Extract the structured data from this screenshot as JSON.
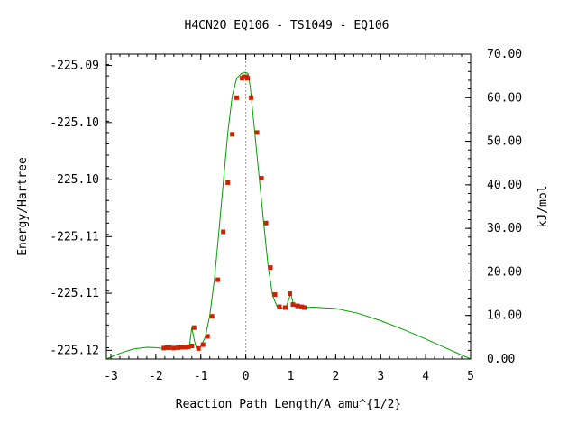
{
  "chart_data": {
    "type": "line",
    "title": "H4CN2O    EQ106 - TS1049 - EQ106",
    "xlabel": "Reaction Path Length/A amu^{1/2}",
    "ylabel_left": "Energy/Hartree",
    "ylabel_right": "kJ/mol",
    "xlim": [
      -3.1,
      5.0
    ],
    "ylim_kj": [
      0.0,
      70.0
    ],
    "x_ticks": [
      -3,
      -2,
      -1,
      0,
      1,
      2,
      3,
      4,
      5
    ],
    "x_tick_labels": [
      "-3",
      "-2",
      "-1",
      "0",
      "1",
      "2",
      "3",
      "4",
      "5"
    ],
    "left_tick_kj": [
      2.0,
      15.1,
      28.1,
      41.2,
      54.3,
      67.4
    ],
    "left_tick_labels": [
      "-225.12",
      "-225.11",
      "-225.11",
      "-225.10",
      "-225.10",
      "-225.09"
    ],
    "right_ticks": [
      0,
      10,
      20,
      30,
      40,
      50,
      60,
      70
    ],
    "right_tick_labels": [
      "0.00",
      "10.00",
      "20.00",
      "30.00",
      "40.00",
      "50.00",
      "60.00",
      "70.00"
    ],
    "ts_marker_x": 0.0,
    "colors": {
      "curve": "#00a000",
      "points": "#cc2200",
      "marker_line": "#999999",
      "axes": "#000000"
    },
    "curve": {
      "x": [
        -3.1,
        -2.8,
        -2.5,
        -2.2,
        -2.0,
        -1.8,
        -1.6,
        -1.4,
        -1.3,
        -1.25,
        -1.2,
        -1.15,
        -1.1,
        -1.05,
        -1.0,
        -0.9,
        -0.8,
        -0.7,
        -0.6,
        -0.5,
        -0.4,
        -0.3,
        -0.2,
        -0.1,
        -0.05,
        0.0,
        0.05,
        0.1,
        0.2,
        0.3,
        0.4,
        0.5,
        0.6,
        0.7,
        0.8,
        0.9,
        0.95,
        1.0,
        1.05,
        1.1,
        1.2,
        1.3,
        1.5,
        2.0,
        2.5,
        3.0,
        3.5,
        4.0,
        4.5,
        5.0
      ],
      "y": [
        0.0,
        1.3,
        2.3,
        2.7,
        2.6,
        2.4,
        2.5,
        2.8,
        2.9,
        3.3,
        7.3,
        4.5,
        2.5,
        2.6,
        2.9,
        5.0,
        10.0,
        18.0,
        29.0,
        40.5,
        52.0,
        60.5,
        64.5,
        65.5,
        65.8,
        65.8,
        65.5,
        62.5,
        52.0,
        41.5,
        31.0,
        21.0,
        14.5,
        12.0,
        11.7,
        12.0,
        13.5,
        15.0,
        13.0,
        12.3,
        12.0,
        11.8,
        11.9,
        11.6,
        10.5,
        8.8,
        6.8,
        4.6,
        2.3,
        0.0
      ]
    },
    "points": {
      "x": [
        -1.82,
        -1.75,
        -1.7,
        -1.6,
        -1.5,
        -1.42,
        -1.35,
        -1.28,
        -1.2,
        -1.15,
        -1.05,
        -0.95,
        -0.85,
        -0.75,
        -0.62,
        -0.5,
        -0.4,
        -0.3,
        -0.2,
        -0.08,
        -0.04,
        0.0,
        0.04,
        0.12,
        0.25,
        0.35,
        0.45,
        0.55,
        0.65,
        0.75,
        0.88,
        0.98,
        1.05,
        1.15,
        1.25,
        1.3
      ],
      "y": [
        2.5,
        2.6,
        2.6,
        2.5,
        2.6,
        2.7,
        2.7,
        2.8,
        3.0,
        7.2,
        2.4,
        3.3,
        5.2,
        9.8,
        18.2,
        29.2,
        40.5,
        51.6,
        60.0,
        64.5,
        64.8,
        64.8,
        64.5,
        60.0,
        52.0,
        41.5,
        31.2,
        21.0,
        14.8,
        12.0,
        11.8,
        15.0,
        12.5,
        12.2,
        12.0,
        11.8
      ]
    }
  }
}
